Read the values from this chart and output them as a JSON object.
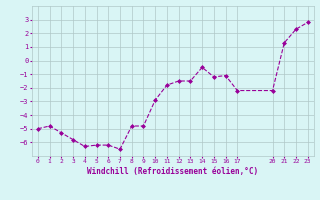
{
  "x_data": [
    0,
    1,
    2,
    3,
    4,
    5,
    6,
    7,
    8,
    9,
    10,
    11,
    12,
    13,
    14,
    15,
    16,
    17,
    20,
    21,
    22,
    23
  ],
  "y_data": [
    -5.0,
    -4.8,
    -5.3,
    -5.8,
    -6.3,
    -6.2,
    -6.2,
    -6.5,
    -4.8,
    -4.8,
    -2.9,
    -1.8,
    -1.5,
    -1.5,
    -0.5,
    -1.2,
    -1.1,
    -2.2,
    -2.2,
    1.3,
    2.3,
    2.8
  ],
  "line_color": "#990099",
  "bg_color": "#d9f5f5",
  "grid_color": "#b0c8c8",
  "xlabel": "Windchill (Refroidissement éolien,°C)",
  "xlim": [
    -0.5,
    23.5
  ],
  "ylim": [
    -7,
    4
  ],
  "yticks": [
    -6,
    -5,
    -4,
    -3,
    -2,
    -1,
    0,
    1,
    2,
    3
  ],
  "xtick_positions": [
    0,
    1,
    2,
    3,
    4,
    5,
    6,
    7,
    8,
    9,
    10,
    11,
    12,
    13,
    14,
    15,
    16,
    17,
    20,
    21,
    22,
    23
  ],
  "xtick_labels": [
    "0",
    "1",
    "2",
    "3",
    "4",
    "5",
    "6",
    "7",
    "8",
    "9",
    "10",
    "11",
    "12",
    "13",
    "14",
    "15",
    "16",
    "17",
    "20",
    "21",
    "22",
    "23"
  ]
}
